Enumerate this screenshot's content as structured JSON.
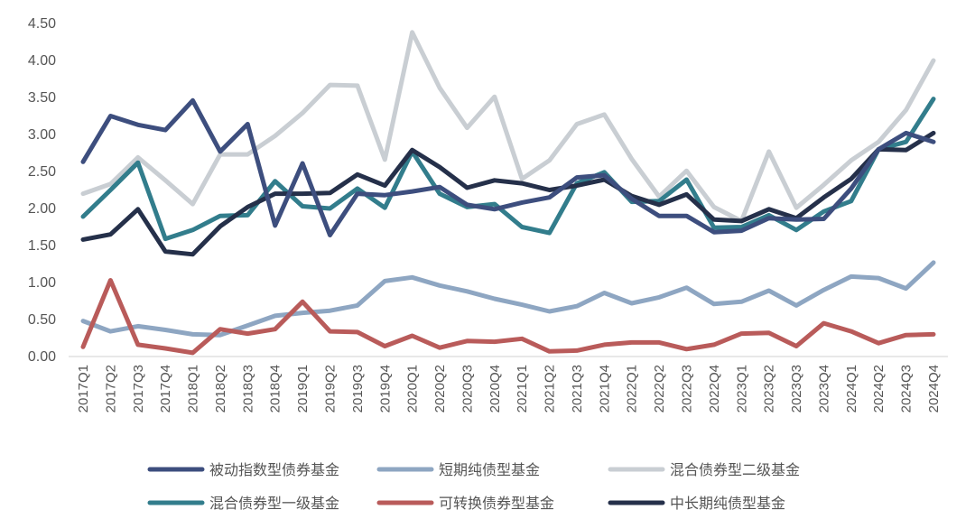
{
  "chart_data": {
    "type": "line",
    "title": "",
    "xlabel": "",
    "ylabel": "",
    "ylim": [
      0,
      4.5
    ],
    "yticks": [
      "0.00",
      "0.50",
      "1.00",
      "1.50",
      "2.00",
      "2.50",
      "3.00",
      "3.50",
      "4.00",
      "4.50"
    ],
    "grid": false,
    "legend_position": "bottom",
    "categories": [
      "2017Q1",
      "2017Q2",
      "2017Q3",
      "2017Q4",
      "2018Q1",
      "2018Q2",
      "2018Q3",
      "2018Q4",
      "2019Q1",
      "2019Q2",
      "2019Q3",
      "2019Q4",
      "2020Q1",
      "2020Q2",
      "2020Q3",
      "2020Q4",
      "2021Q1",
      "2021Q2",
      "2021Q3",
      "2021Q4",
      "2022Q1",
      "2022Q2",
      "2022Q3",
      "2022Q4",
      "2023Q1",
      "2023Q2",
      "2023Q3",
      "2023Q4",
      "2024Q1",
      "2024Q2",
      "2024Q3",
      "2024Q4"
    ],
    "series": [
      {
        "name": "被动指数型债券基金",
        "color": "#3D4E7E",
        "values": [
          2.63,
          3.25,
          3.13,
          3.06,
          3.46,
          2.77,
          3.14,
          1.77,
          2.61,
          1.64,
          2.2,
          2.18,
          2.23,
          2.29,
          2.05,
          1.99,
          2.08,
          2.15,
          2.42,
          2.45,
          2.13,
          1.9,
          1.9,
          1.68,
          1.7,
          1.87,
          1.85,
          1.86,
          2.27,
          2.8,
          3.02,
          2.9
        ]
      },
      {
        "name": "短期纯债型基金",
        "color": "#8EA6C2",
        "values": [
          0.48,
          0.34,
          0.41,
          0.36,
          0.3,
          0.29,
          0.42,
          0.55,
          0.59,
          0.62,
          0.69,
          1.02,
          1.07,
          0.96,
          0.88,
          0.78,
          0.7,
          0.61,
          0.68,
          0.86,
          0.72,
          0.8,
          0.93,
          0.71,
          0.74,
          0.89,
          0.69,
          0.9,
          1.08,
          1.06,
          0.92,
          1.27
        ]
      },
      {
        "name": "混合债券型二级基金",
        "color": "#C9CED3",
        "values": [
          2.2,
          2.33,
          2.69,
          2.38,
          2.06,
          2.73,
          2.73,
          2.98,
          3.29,
          3.67,
          3.66,
          2.66,
          4.38,
          3.63,
          3.09,
          3.51,
          2.4,
          2.65,
          3.14,
          3.27,
          2.67,
          2.16,
          2.51,
          2.02,
          1.83,
          2.77,
          2.01,
          2.32,
          2.65,
          2.9,
          3.33,
          4.0
        ]
      },
      {
        "name": "混合债券型一级基金",
        "color": "#327D8C",
        "values": [
          1.89,
          2.25,
          2.62,
          1.59,
          1.71,
          1.9,
          1.91,
          2.37,
          2.03,
          2.0,
          2.27,
          2.01,
          2.77,
          2.2,
          2.02,
          2.06,
          1.75,
          1.67,
          2.34,
          2.49,
          2.09,
          2.1,
          2.39,
          1.74,
          1.75,
          1.91,
          1.71,
          1.96,
          2.1,
          2.8,
          2.9,
          3.48
        ]
      },
      {
        "name": "可转换债券型基金",
        "color": "#B95B5A",
        "values": [
          0.13,
          1.03,
          0.16,
          0.11,
          0.05,
          0.37,
          0.31,
          0.37,
          0.74,
          0.34,
          0.33,
          0.14,
          0.28,
          0.12,
          0.21,
          0.2,
          0.24,
          0.07,
          0.08,
          0.16,
          0.19,
          0.19,
          0.1,
          0.16,
          0.31,
          0.32,
          0.14,
          0.45,
          0.34,
          0.18,
          0.29,
          0.3
        ]
      },
      {
        "name": "中长期纯债型基金",
        "color": "#25304A",
        "values": [
          1.58,
          1.65,
          1.99,
          1.42,
          1.38,
          1.76,
          2.02,
          2.2,
          2.2,
          2.21,
          2.46,
          2.31,
          2.79,
          2.56,
          2.28,
          2.38,
          2.34,
          2.25,
          2.31,
          2.39,
          2.17,
          2.05,
          2.19,
          1.85,
          1.83,
          1.99,
          1.87,
          2.15,
          2.4,
          2.8,
          2.79,
          3.02
        ]
      }
    ]
  }
}
